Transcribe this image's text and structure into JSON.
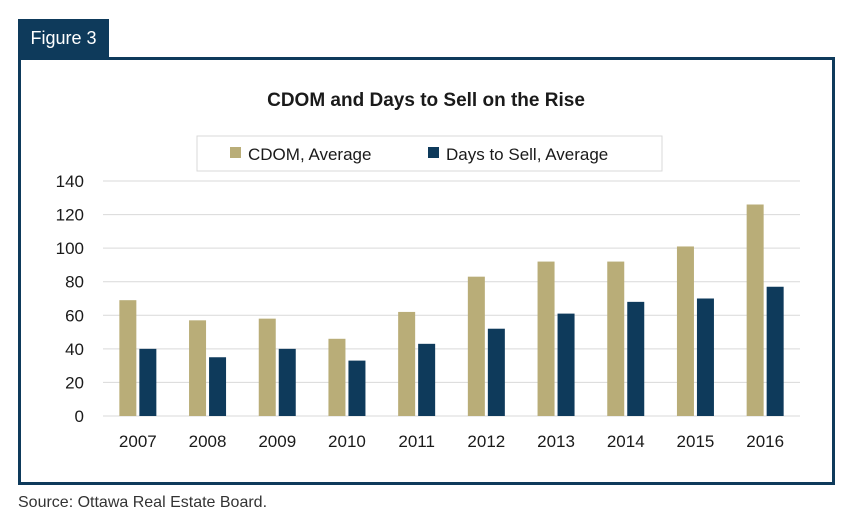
{
  "figure_label": "Figure 3",
  "source": "Source: Ottawa Real Estate Board.",
  "colors": {
    "frame": "#0e3a5b",
    "cdom": "#b9ad78",
    "days": "#0e3a5b",
    "grid": "#d9d9d9"
  },
  "chart_data": {
    "type": "bar",
    "title": "CDOM and Days to Sell on the Rise",
    "categories": [
      "2007",
      "2008",
      "2009",
      "2010",
      "2011",
      "2012",
      "2013",
      "2014",
      "2015",
      "2016"
    ],
    "series": [
      {
        "name": "CDOM, Average",
        "values": [
          69,
          57,
          58,
          46,
          62,
          83,
          92,
          92,
          101,
          126
        ]
      },
      {
        "name": "Days to Sell, Average",
        "values": [
          40,
          35,
          40,
          33,
          43,
          52,
          61,
          68,
          70,
          77
        ]
      }
    ],
    "ylim": [
      0,
      140
    ],
    "yticks": [
      0,
      20,
      40,
      60,
      80,
      100,
      120,
      140
    ],
    "grid": true,
    "legend": "top-center"
  }
}
